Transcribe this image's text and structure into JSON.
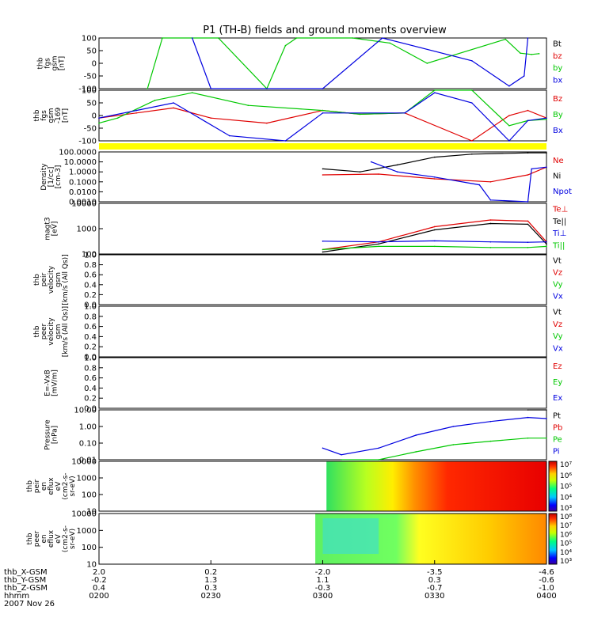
{
  "title": "P1 (TH-B) fields and ground moments overview",
  "colors": {
    "black": "#000000",
    "red": "#e00000",
    "green": "#00c800",
    "blue": "#0000e0",
    "yellow": "#ffff00"
  },
  "panels": [
    {
      "id": "fgs",
      "ylabel": [
        "thb",
        "fgs",
        "gsm",
        "[nT]"
      ],
      "ticks": [
        "100",
        "50",
        "0",
        "-50",
        "-100"
      ],
      "legend": [
        {
          "text": "Bt",
          "color": "#000000"
        },
        {
          "text": "bz",
          "color": "#e00000"
        },
        {
          "text": "by",
          "color": "#00c800"
        },
        {
          "text": "bx",
          "color": "#0000e0"
        }
      ]
    },
    {
      "id": "fgl",
      "ylabel": [
        "thb",
        "fgs",
        "gsm",
        "-169",
        "[nT]"
      ],
      "ticks": [
        "100",
        "50",
        "0",
        "-50",
        "-100"
      ],
      "legend": [
        {
          "text": "Bz",
          "color": "#e00000"
        },
        {
          "text": "By",
          "color": "#00c800"
        },
        {
          "text": "Bx",
          "color": "#0000e0"
        }
      ]
    },
    {
      "id": "density",
      "ylabel": [
        "Density",
        "[1/cc]",
        "[cm-3]"
      ],
      "ticks": [
        "100.0000",
        "10.0000",
        "1.0000",
        "0.1000",
        "0.0100",
        "0.0010"
      ],
      "legend": [
        {
          "text": "Ne",
          "color": "#e00000"
        },
        {
          "text": "Ni",
          "color": "#000000"
        },
        {
          "text": "Npot",
          "color": "#0000e0"
        }
      ]
    },
    {
      "id": "temp",
      "ylabel": [
        "magt3",
        "[eV]"
      ],
      "ticks": [
        "10000",
        "1000",
        "100"
      ],
      "legend": [
        {
          "text": "Te⊥",
          "color": "#e00000"
        },
        {
          "text": "Te||",
          "color": "#000000"
        },
        {
          "text": "Ti⊥",
          "color": "#0000e0"
        },
        {
          "text": "Ti||",
          "color": "#00c800"
        }
      ]
    },
    {
      "id": "peir_vel",
      "ylabel": [
        "thb",
        "peir",
        "velocity",
        "gsm",
        "[km/s (All Qs)]"
      ],
      "ticks": [
        "1.0",
        "0.8",
        "0.6",
        "0.4",
        "0.2",
        "0.0"
      ],
      "legend": [
        {
          "text": "Vt",
          "color": "#000000"
        },
        {
          "text": "Vz",
          "color": "#e00000"
        },
        {
          "text": "Vy",
          "color": "#00c800"
        },
        {
          "text": "Vx",
          "color": "#0000e0"
        }
      ]
    },
    {
      "id": "peer_vel",
      "ylabel": [
        "thb",
        "peer",
        "velocity",
        "gsm",
        "[km/s (All Qs)]"
      ],
      "ticks": [
        "1.0",
        "0.8",
        "0.6",
        "0.4",
        "0.2",
        "0.0"
      ],
      "legend": [
        {
          "text": "Vt",
          "color": "#000000"
        },
        {
          "text": "Vz",
          "color": "#e00000"
        },
        {
          "text": "Vy",
          "color": "#00c800"
        },
        {
          "text": "Vx",
          "color": "#0000e0"
        }
      ]
    },
    {
      "id": "efield",
      "ylabel": [
        "E=-VxB",
        "[mV/m]"
      ],
      "ticks": [
        "1.0",
        "0.8",
        "0.6",
        "0.4",
        "0.2",
        "0.0"
      ],
      "legend": [
        {
          "text": "Ez",
          "color": "#e00000"
        },
        {
          "text": "Ey",
          "color": "#00c800"
        },
        {
          "text": "Ex",
          "color": "#0000e0"
        }
      ]
    },
    {
      "id": "pressure",
      "ylabel": [
        "Pressure",
        "[nPa]"
      ],
      "ticks": [
        "10.00",
        "1.00",
        "0.10",
        "0.01"
      ],
      "legend": [
        {
          "text": "Pt",
          "color": "#000000"
        },
        {
          "text": "Pb",
          "color": "#e00000"
        },
        {
          "text": "Pe",
          "color": "#00c800"
        },
        {
          "text": "Pi",
          "color": "#0000e0"
        }
      ]
    },
    {
      "id": "peir_en",
      "ylabel": [
        "thb",
        "peir",
        "en",
        "eflux",
        "eV",
        "(cm2-s-",
        "sr-eV)"
      ],
      "ticks": [
        "10000",
        "1000",
        "100",
        "10"
      ],
      "colorbar": [
        "10⁷",
        "10⁶",
        "10⁵",
        "10⁴",
        "10³"
      ]
    },
    {
      "id": "peer_en",
      "ylabel": [
        "thb",
        "peer",
        "en",
        "eflux",
        "eV",
        "(cm2-s-",
        "sr-eV)"
      ],
      "ticks": [
        "10000",
        "1000",
        "100",
        "10"
      ],
      "colorbar": [
        "10⁸",
        "10⁷",
        "10⁶",
        "10⁵",
        "10⁴",
        "10³"
      ]
    }
  ],
  "xaxis": {
    "rows": [
      {
        "label": "thb_X-GSM",
        "values": [
          "2.0",
          "0.2",
          "-2.0",
          "-3.5",
          "-4.6"
        ]
      },
      {
        "label": "thb_Y-GSM",
        "values": [
          "-0.2",
          "1.3",
          "1.1",
          "0.3",
          "-0.6"
        ]
      },
      {
        "label": "thb_Z-GSM",
        "values": [
          "0.4",
          "0.3",
          "-0.3",
          "-0.7",
          "-1.0"
        ]
      },
      {
        "label": "hhmm",
        "values": [
          "0200",
          "0230",
          "0300",
          "0330",
          "0400"
        ]
      }
    ],
    "date": "2007 Nov 26"
  },
  "chart_data": {
    "type": "line",
    "title": "P1 (TH-B) fields and ground moments overview",
    "x_time_hhmm": [
      "0200",
      "0230",
      "0300",
      "0330",
      "0400"
    ],
    "time_range": [
      "0200",
      "0400"
    ],
    "panels": [
      {
        "name": "thb fgs gsm [nT]",
        "ylim": [
          -100,
          100
        ],
        "series": [
          {
            "name": "by",
            "x": [
              "0213",
              "0217",
              "0232",
              "0245",
              "0250",
              "0253",
              "0308",
              "0318",
              "0328",
              "0349",
              "0353",
              "0356",
              "0358"
            ],
            "values": [
              -100,
              100,
              100,
              -100,
              70,
              100,
              100,
              80,
              0,
              95,
              40,
              35,
              38
            ]
          },
          {
            "name": "bx",
            "x": [
              "0225",
              "0230",
              "0300",
              "0316",
              "0340",
              "0350",
              "0354",
              "0355"
            ],
            "values": [
              100,
              -100,
              -100,
              100,
              10,
              -90,
              -50,
              100
            ]
          }
        ]
      },
      {
        "name": "thb fgs gsm -169 [nT]",
        "ylim": [
          -100,
          100
        ],
        "series": [
          {
            "name": "Bz",
            "x": [
              "0200",
              "0210",
              "0220",
              "0230",
              "0245",
              "0300",
              "0310",
              "0322",
              "0340",
              "0350",
              "0355",
              "0400"
            ],
            "values": [
              -10,
              10,
              30,
              -10,
              -30,
              20,
              5,
              10,
              -110,
              0,
              20,
              -10
            ]
          },
          {
            "name": "By",
            "x": [
              "0200",
              "0205",
              "0215",
              "0225",
              "0240",
              "0300",
              "0310",
              "0322",
              "0330",
              "0340",
              "0350",
              "0355",
              "0400"
            ],
            "values": [
              -30,
              -10,
              60,
              90,
              40,
              20,
              5,
              10,
              100,
              100,
              -40,
              -20,
              -15
            ]
          },
          {
            "name": "Bx",
            "x": [
              "0200",
              "0210",
              "0220",
              "0235",
              "0250",
              "0300",
              "0322",
              "0330",
              "0340",
              "0350",
              "0355",
              "0400"
            ],
            "values": [
              -10,
              20,
              50,
              -80,
              -100,
              10,
              10,
              90,
              50,
              -100,
              -20,
              -10
            ]
          }
        ]
      },
      {
        "name": "Density [cm-3]",
        "ylim": [
          0.001,
          100
        ],
        "scale": "log",
        "series": [
          {
            "name": "Ni",
            "x": [
              "0300",
              "0310",
              "0320",
              "0330",
              "0340",
              "0355",
              "0400"
            ],
            "values": [
              2.0,
              1.0,
              5.0,
              30,
              60,
              80,
              80
            ]
          },
          {
            "name": "Ne",
            "x": [
              "0300",
              "0315",
              "0330",
              "0345",
              "0355",
              "0400"
            ],
            "values": [
              0.5,
              0.6,
              0.2,
              0.1,
              0.5,
              3.0
            ]
          },
          {
            "name": "Npot",
            "x": [
              "0313",
              "0320",
              "0330",
              "0342",
              "0345",
              "0355",
              "0356",
              "0400"
            ],
            "values": [
              10.0,
              1.0,
              0.3,
              0.05,
              0.0015,
              0.001,
              2.0,
              3.0
            ]
          }
        ]
      },
      {
        "name": "magt3 [eV]",
        "ylim": [
          100,
          10000
        ],
        "scale": "log",
        "series": [
          {
            "name": "Te⊥",
            "x": [
              "0300",
              "0315",
              "0330",
              "0345",
              "0355",
              "0400"
            ],
            "values": [
              150,
              300,
              1200,
              2200,
              2000,
              300
            ]
          },
          {
            "name": "Te||",
            "x": [
              "0300",
              "0315",
              "0330",
              "0345",
              "0355",
              "0400"
            ],
            "values": [
              120,
              250,
              900,
              1600,
              1500,
              250
            ]
          },
          {
            "name": "Ti⊥",
            "x": [
              "0300",
              "0315",
              "0330",
              "0345",
              "0355",
              "0400"
            ],
            "values": [
              320,
              300,
              330,
              300,
              290,
              300
            ]
          },
          {
            "name": "Ti||",
            "x": [
              "0300",
              "0315",
              "0330",
              "0345",
              "0355",
              "0400"
            ],
            "values": [
              150,
              200,
              200,
              180,
              180,
              200
            ]
          }
        ]
      },
      {
        "name": "Pressure [nPa]",
        "ylim": [
          0.01,
          10
        ],
        "scale": "log",
        "series": [
          {
            "name": "Pi",
            "x": [
              "0300",
              "0305",
              "0315",
              "0325",
              "0335",
              "0345",
              "0355",
              "0400"
            ],
            "values": [
              0.05,
              0.02,
              0.05,
              0.3,
              1.0,
              2.0,
              3.5,
              3.0
            ]
          },
          {
            "name": "Pe",
            "x": [
              "0305",
              "0315",
              "0325",
              "0335",
              "0345",
              "0355",
              "0400"
            ],
            "values": [
              0.01,
              0.01,
              0.03,
              0.08,
              0.13,
              0.2,
              0.2
            ]
          },
          {
            "name": "Pt",
            "x": [
              "0355",
              "0400"
            ],
            "values": [
              12,
              10
            ]
          }
        ]
      }
    ],
    "spectrograms": [
      {
        "name": "thb peir en eflux",
        "ylim": [
          5,
          20000
        ],
        "scale": "log",
        "zlim": [
          1000,
          10000000
        ]
      },
      {
        "name": "thb peer en eflux",
        "ylim": [
          5,
          20000
        ],
        "scale": "log",
        "zlim": [
          1000,
          100000000
        ]
      }
    ]
  }
}
